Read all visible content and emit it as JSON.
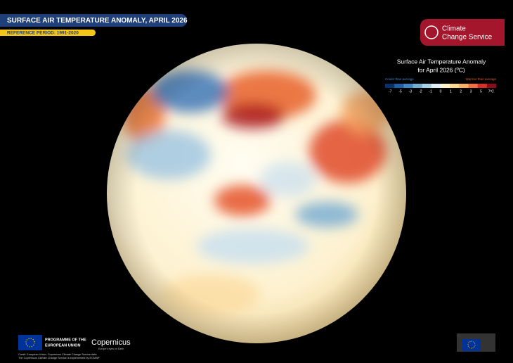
{
  "header": {
    "title": "SURFACE AIR TEMPERATURE ANOMALY, APRIL 2026",
    "reference": "REFERENCE PERIOD: 1991-2020"
  },
  "brand": {
    "line1": "Climate",
    "line2": "Change Service"
  },
  "legend": {
    "title": "Surface Air Temperature Anomaly",
    "subtitle": "for April 2026 (ºC)",
    "cooler": "Cooler than average",
    "warmer": "Warmer than average",
    "colors": [
      "#08306b",
      "#1f5fa8",
      "#3f86c4",
      "#74add1",
      "#abd0e6",
      "#e0eef6",
      "#fdf3c8",
      "#fed98e",
      "#fdae61",
      "#f46d43",
      "#d73027",
      "#8b0d1a"
    ],
    "ticks": [
      -7,
      -5,
      -3,
      -2,
      -1,
      0,
      1,
      2,
      3,
      5,
      {
        "value": 7,
        "label": "7ºC"
      }
    ]
  },
  "footer": {
    "programme": "PROGRAMME OF THE",
    "eu": "EUROPEAN UNION",
    "copernicus": "Copernicus",
    "tagline": "Europe's eyes on Earth",
    "credit1": "Credit: European Union, Copernicus Climate Change Service data",
    "credit2": "The Copernicus Climate Change Service is implemented by ECMWF"
  }
}
